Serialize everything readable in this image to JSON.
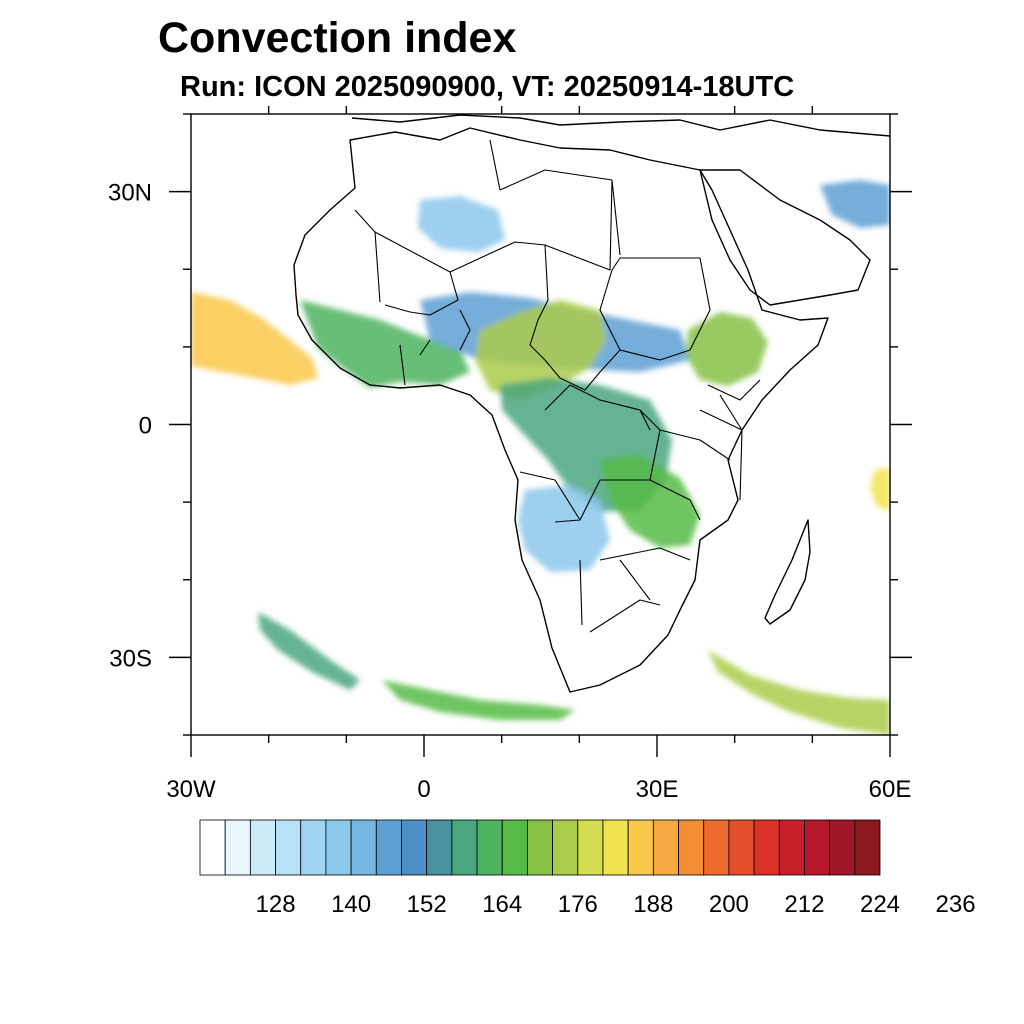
{
  "title": "Convection index",
  "subtitle": "Run: ICON 2025090900,  VT: 20250914-18UTC",
  "map": {
    "region": "Africa",
    "lon_range": [
      -30,
      60
    ],
    "lat_range": [
      -40,
      40
    ],
    "lat_ticks": [
      {
        "value": 30,
        "label": "30N"
      },
      {
        "value": 0,
        "label": "0"
      },
      {
        "value": -30,
        "label": "30S"
      }
    ],
    "lon_ticks": [
      {
        "value": -30,
        "label": "30W"
      },
      {
        "value": 0,
        "label": "0"
      },
      {
        "value": 30,
        "label": "30E"
      },
      {
        "value": 60,
        "label": "60E"
      }
    ],
    "coastline_color": "#000000",
    "areas": [
      {
        "name": "atlantic-itcz-west",
        "level": 182
      },
      {
        "name": "west-africa-coast-band",
        "level": 156
      },
      {
        "name": "sahel-band",
        "level": 140
      },
      {
        "name": "nigeria-cameroon-cluster",
        "level": 168
      },
      {
        "name": "ethiopia-highlands",
        "level": 164
      },
      {
        "name": "congo-basin",
        "level": 152
      },
      {
        "name": "east-congo-lakes",
        "level": 160
      },
      {
        "name": "angola-plateau",
        "level": 134
      },
      {
        "name": "southern-ocean-band-west",
        "level": 152
      },
      {
        "name": "southern-ocean-band-center",
        "level": 160
      },
      {
        "name": "southern-ocean-band-east",
        "level": 170
      },
      {
        "name": "sahara-north-patch",
        "level": 134
      },
      {
        "name": "arabia-northeast-patch",
        "level": 140
      },
      {
        "name": "madagascar-east-edge",
        "level": 176
      }
    ]
  },
  "colorbar": {
    "labels": [
      "128",
      "140",
      "152",
      "164",
      "176",
      "188",
      "200",
      "212",
      "224",
      "236"
    ],
    "label_values": [
      128,
      140,
      152,
      164,
      176,
      188,
      200,
      212,
      224,
      236
    ],
    "start": 116,
    "step": 4,
    "colors": [
      "#ffffff",
      "#e8f5fc",
      "#cdeaf8",
      "#b8e1f6",
      "#9fd5f3",
      "#8cc7ec",
      "#76b6e3",
      "#5e9fd4",
      "#4e8fc7",
      "#48939f",
      "#4aa67f",
      "#4db35e",
      "#56bb46",
      "#86c145",
      "#abcb4b",
      "#d4dc4f",
      "#f0e34e",
      "#f9c84b",
      "#f5a940",
      "#f58d36",
      "#ef6a2e",
      "#e64f2b",
      "#dc3129",
      "#c8202a",
      "#b5172b",
      "#a0172a",
      "#8a1a1e"
    ]
  }
}
